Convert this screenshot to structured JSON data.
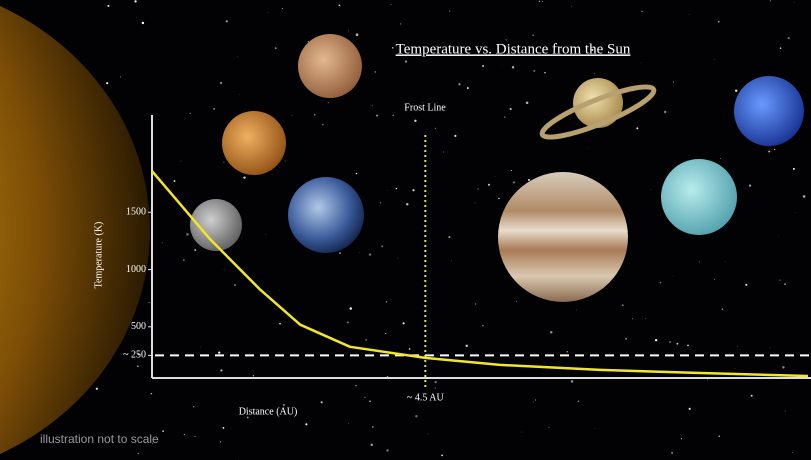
{
  "chart_data": {
    "type": "line",
    "title": "Temperature vs. Distance from the Sun",
    "xlabel": "Distance (AU)",
    "ylabel": "Temperature (K)",
    "annotations": [
      "Frost Line",
      "illustration not to scale"
    ],
    "x": [
      0,
      0.96,
      1.78,
      2.44,
      3.26,
      4.5,
      5.73,
      7.38,
      9.03,
      10.8
    ],
    "values": [
      1860,
      1263,
      825,
      518,
      325,
      228,
      167,
      123,
      96,
      70
    ],
    "color": "#f2e628",
    "xlim": [
      0,
      10.85
    ],
    "ylim": [
      0,
      2350
    ],
    "xticks": [
      {
        "value": 4.5,
        "label": "~ 4.5 AU"
      }
    ],
    "yticks": [
      {
        "value": 250,
        "label": "~ 250"
      },
      500,
      1000,
      1500
    ],
    "grid": false
  }
}
